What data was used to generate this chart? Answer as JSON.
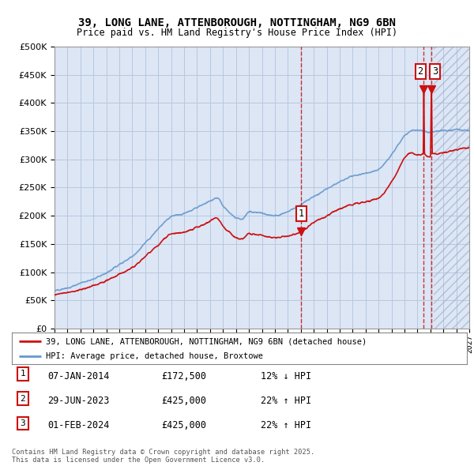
{
  "title1": "39, LONG LANE, ATTENBOROUGH, NOTTINGHAM, NG9 6BN",
  "title2": "Price paid vs. HM Land Registry's House Price Index (HPI)",
  "background_color": "#ffffff",
  "plot_bg_color": "#dce6f5",
  "grid_color": "#b8c8e0",
  "legend_label1": "39, LONG LANE, ATTENBOROUGH, NOTTINGHAM, NG9 6BN (detached house)",
  "legend_label2": "HPI: Average price, detached house, Broxtowe",
  "footer": "Contains HM Land Registry data © Crown copyright and database right 2025.\nThis data is licensed under the Open Government Licence v3.0.",
  "table_rows": [
    {
      "num": "1",
      "date": "07-JAN-2014",
      "price": "£172,500",
      "hpi": "12% ↓ HPI"
    },
    {
      "num": "2",
      "date": "29-JUN-2023",
      "price": "£425,000",
      "hpi": "22% ↑ HPI"
    },
    {
      "num": "3",
      "date": "01-FEB-2024",
      "price": "£425,000",
      "hpi": "22% ↑ HPI"
    }
  ],
  "sale_dates": [
    2014.03,
    2023.49,
    2024.08
  ],
  "sale_prices": [
    172500,
    425000,
    425000
  ],
  "hpi_color": "#6699cc",
  "price_color": "#cc1111",
  "hatch_start": 2024.25,
  "xmin": 1995,
  "xmax": 2027,
  "ymin": 0,
  "ymax": 500000,
  "blue_anchors_t": [
    1995,
    1996,
    1997,
    1998,
    1999,
    2000,
    2001,
    2002,
    2003,
    2004,
    2005,
    2006,
    2007,
    2007.6,
    2008,
    2008.5,
    2009,
    2009.5,
    2010,
    2011,
    2012,
    2013,
    2014,
    2015,
    2016,
    2017,
    2018,
    2019,
    2019.5,
    2020,
    2020.5,
    2021,
    2021.5,
    2022,
    2022.5,
    2023,
    2023.5,
    2024,
    2024.5,
    2025,
    2025.5,
    2026,
    2026.5,
    2027
  ],
  "blue_anchors_v": [
    67000,
    72000,
    80000,
    88000,
    99000,
    113000,
    128000,
    152000,
    176000,
    198000,
    204000,
    215000,
    226000,
    231000,
    218000,
    205000,
    197000,
    194000,
    207000,
    204000,
    200000,
    207000,
    220000,
    234000,
    247000,
    261000,
    270000,
    275000,
    278000,
    282000,
    293000,
    308000,
    325000,
    342000,
    350000,
    352000,
    350000,
    348000,
    350000,
    352000,
    352000,
    353000,
    352000,
    352000
  ],
  "red_anchors_t": [
    1995,
    1996,
    1997,
    1998,
    1999,
    2000,
    2001,
    2002,
    2003,
    2004,
    2005,
    2006,
    2007,
    2007.5,
    2008,
    2008.5,
    2009,
    2009.5,
    2010,
    2011,
    2012,
    2013,
    2014.03,
    2015,
    2016,
    2017,
    2018,
    2019,
    2019.5,
    2020,
    2020.5,
    2021,
    2021.5,
    2022,
    2022.5,
    2023,
    2023.45,
    2023.49,
    2023.55,
    2024.0,
    2024.08,
    2024.15,
    2024.5,
    2025,
    2025.5,
    2026,
    2026.5,
    2027
  ],
  "red_anchors_v": [
    60000,
    64000,
    69000,
    76000,
    85000,
    96000,
    108000,
    128000,
    148000,
    168000,
    171000,
    180000,
    190000,
    196000,
    182000,
    170000,
    162000,
    159000,
    168000,
    165000,
    161000,
    164000,
    172500,
    188000,
    200000,
    212000,
    220000,
    225000,
    228000,
    232000,
    243000,
    260000,
    280000,
    303000,
    312000,
    308000,
    310000,
    425000,
    310000,
    305000,
    425000,
    310000,
    310000,
    312000,
    315000,
    318000,
    320000,
    320000
  ]
}
